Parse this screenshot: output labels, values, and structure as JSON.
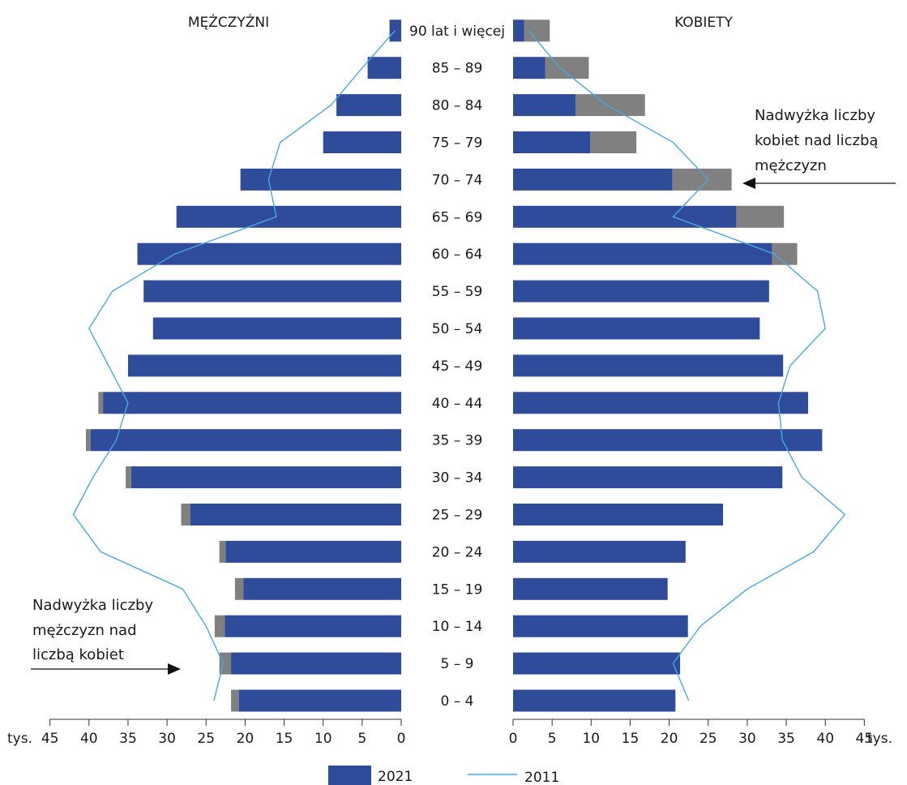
{
  "chart_data": {
    "type": "bar",
    "subtype": "population-pyramid",
    "categories": [
      "0 – 4",
      "5 – 9",
      "10 – 14",
      "15 – 19",
      "20 – 24",
      "25 – 29",
      "30 – 34",
      "35 – 39",
      "40 – 44",
      "45 – 49",
      "50 – 54",
      "55 – 59",
      "60 – 64",
      "65 – 69",
      "70 –  74",
      "75 – 79",
      "80 – 84",
      "85 – 89",
      "90 lat i więcej"
    ],
    "left_title": "MĘŻCZYŹNI",
    "right_title": "KOBIETY",
    "unit_label": "tys.",
    "xlim": [
      0,
      45
    ],
    "ticks": [
      0,
      5,
      10,
      15,
      20,
      25,
      30,
      35,
      40,
      45
    ],
    "series": [
      {
        "name": "2021",
        "side": "men",
        "values": [
          20.8,
          21.8,
          22.6,
          20.2,
          22.5,
          27.0,
          34.6,
          39.8,
          38.2,
          35.0,
          31.8,
          33.0,
          33.8,
          28.8,
          20.6,
          10.0,
          8.3,
          4.3,
          1.5
        ]
      },
      {
        "name": "2021",
        "side": "women",
        "values": [
          20.8,
          21.4,
          22.4,
          19.8,
          22.1,
          26.9,
          34.5,
          39.6,
          37.8,
          34.6,
          31.6,
          32.8,
          33.2,
          28.6,
          20.4,
          9.9,
          8.0,
          4.1,
          1.4
        ]
      },
      {
        "name": "excess_men",
        "side": "men",
        "values": [
          1.0,
          1.5,
          1.3,
          1.1,
          0.8,
          1.2,
          0.7,
          0.6,
          0.6,
          0,
          0,
          0,
          0,
          0,
          0,
          0,
          0,
          0,
          0
        ]
      },
      {
        "name": "excess_women",
        "side": "women",
        "values": [
          0,
          0,
          0,
          0,
          0,
          0,
          0,
          0,
          0,
          0,
          0,
          0,
          3.2,
          6.1,
          7.6,
          5.9,
          8.9,
          5.6,
          3.3
        ]
      },
      {
        "name": "2011",
        "side": "men",
        "values": [
          24.0,
          22.8,
          25.0,
          28.0,
          38.5,
          42.0,
          39.5,
          36.5,
          35.0,
          37.5,
          40.0,
          37.0,
          29.0,
          16.0,
          17.0,
          15.5,
          9.0,
          5.0,
          0.8
        ]
      },
      {
        "name": "2011",
        "side": "women",
        "values": [
          22.5,
          20.5,
          24.0,
          30.0,
          38.5,
          42.5,
          37.0,
          34.5,
          34.0,
          35.5,
          40.0,
          39.0,
          33.5,
          20.5,
          25.0,
          20.5,
          12.0,
          6.0,
          2.0
        ]
      }
    ],
    "annotations": {
      "women_excess_lines": [
        "Nadwyżka liczby",
        "kobiet nad liczbą",
        "mężczyzn"
      ],
      "men_excess_lines": [
        "Nadwyżka liczby",
        "mężczyzn nad",
        "liczbą kobiet"
      ]
    },
    "legend": [
      {
        "label": "2021",
        "kind": "bar",
        "color": "#2f4c9b"
      },
      {
        "label": "2011",
        "kind": "line",
        "color": "#4aa8e0"
      }
    ],
    "legend_position": "bottom-center",
    "colors": {
      "bar": "#2f4c9b",
      "excess": "#808080",
      "line2011": "#4aa8e0",
      "axis": "#333333"
    }
  }
}
